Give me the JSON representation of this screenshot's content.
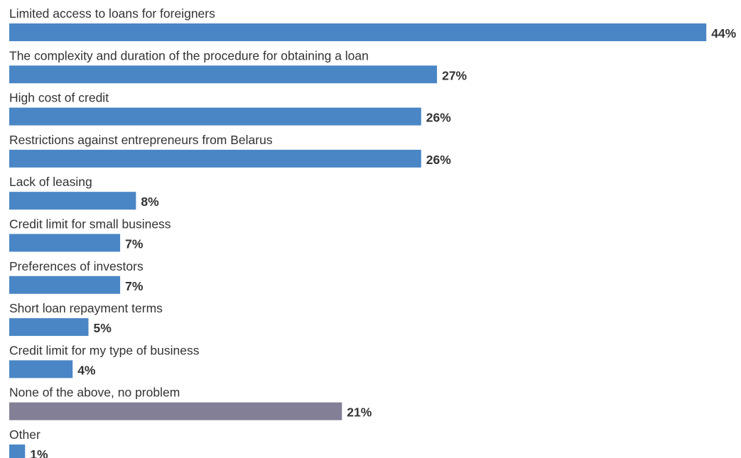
{
  "chart_data": {
    "type": "bar",
    "orientation": "horizontal",
    "title": "",
    "xlabel": "",
    "ylabel": "",
    "xlim": [
      0,
      44
    ],
    "grid": false,
    "legend": "none",
    "value_suffix": "%",
    "categories": [
      "Limited access to loans for foreigners",
      "The complexity and duration of the procedure for obtaining a loan",
      "High cost of credit",
      "Restrictions against entrepreneurs from Belarus",
      "Lack of leasing",
      "Credit limit for small business",
      "Preferences of investors",
      "Short loan repayment terms",
      "Credit limit for my type of business",
      "None of the above, no problem",
      "Other"
    ],
    "values": [
      44,
      27,
      26,
      26,
      8,
      7,
      7,
      5,
      4,
      21,
      1
    ],
    "colors": [
      "#4a86c5",
      "#4a86c5",
      "#4a86c5",
      "#4a86c5",
      "#4a86c5",
      "#4a86c5",
      "#4a86c5",
      "#4a86c5",
      "#4a86c5",
      "#837f96",
      "#4a86c5"
    ]
  }
}
